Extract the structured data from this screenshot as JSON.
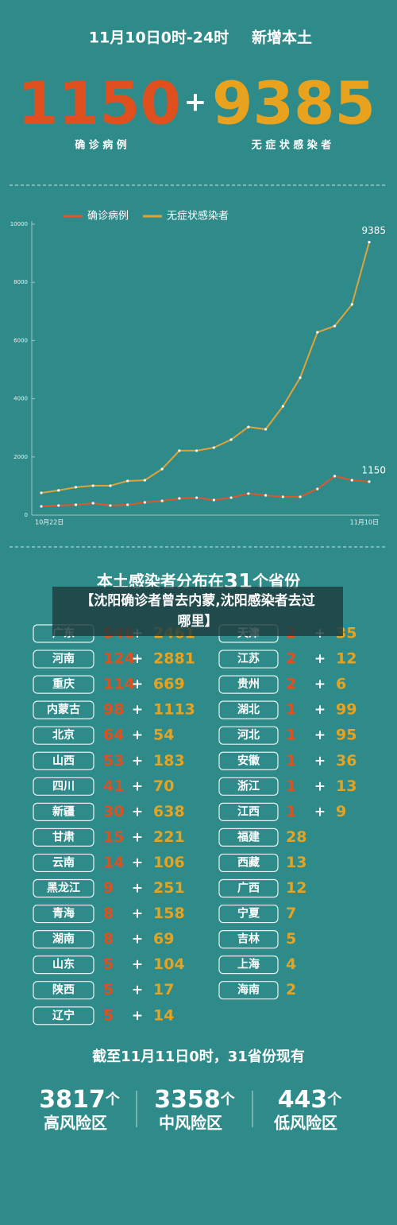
{
  "header": {
    "date": "11月10日0时-24时",
    "label": "新增本土",
    "confirmed": 1150,
    "plus": "+",
    "asymptomatic": 9385,
    "confirmed_label": "确 诊 病 例",
    "asymptomatic_label": "无 症 状 感 染 者"
  },
  "chart_data": {
    "type": "line",
    "categories": [
      "10月22日",
      null,
      null,
      null,
      null,
      null,
      null,
      null,
      null,
      null,
      null,
      null,
      null,
      null,
      null,
      null,
      null,
      null,
      null,
      "11月10日"
    ],
    "series": [
      {
        "name": "确诊病例",
        "color": "#e0562a",
        "values": [
          300,
          330,
          355,
          410,
          330,
          355,
          437,
          490,
          575,
          600,
          520,
          600,
          740,
          680,
          630,
          630,
          900,
          1340,
          1200,
          1150
        ]
      },
      {
        "name": "无症状感染者",
        "color": "#e2a23a",
        "values": [
          765,
          850,
          960,
          1010,
          1010,
          1175,
          1200,
          1585,
          2215,
          2215,
          2320,
          2595,
          3030,
          2950,
          3740,
          4725,
          6285,
          6500,
          7240,
          9385
        ]
      }
    ],
    "ylim": [
      0,
      10000
    ],
    "yticks": [
      0,
      2000,
      4000,
      6000,
      8000,
      10000
    ],
    "grid": false,
    "legend": "top"
  },
  "distribution": {
    "title_pre": "本土感染者分布在",
    "title_num": 31,
    "title_post": "个省份",
    "banner": "【沈阳确诊者曾去内蒙,沈阳感染者去过哪里】",
    "plus": "+",
    "left": [
      {
        "province": "广东",
        "confirmed": 546,
        "asymptomatic": 2461
      },
      {
        "province": "河南",
        "confirmed": 124,
        "asymptomatic": 2881
      },
      {
        "province": "重庆",
        "confirmed": 114,
        "asymptomatic": 669
      },
      {
        "province": "内蒙古",
        "confirmed": 98,
        "asymptomatic": 1113
      },
      {
        "province": "北京",
        "confirmed": 64,
        "asymptomatic": 54
      },
      {
        "province": "山西",
        "confirmed": 53,
        "asymptomatic": 183
      },
      {
        "province": "四川",
        "confirmed": 41,
        "asymptomatic": 70
      },
      {
        "province": "新疆",
        "confirmed": 30,
        "asymptomatic": 638
      },
      {
        "province": "甘肃",
        "confirmed": 15,
        "asymptomatic": 221
      },
      {
        "province": "云南",
        "confirmed": 14,
        "asymptomatic": 106
      },
      {
        "province": "黑龙江",
        "confirmed": 9,
        "asymptomatic": 251
      },
      {
        "province": "青海",
        "confirmed": 8,
        "asymptomatic": 158
      },
      {
        "province": "湖南",
        "confirmed": 8,
        "asymptomatic": 69
      },
      {
        "province": "山东",
        "confirmed": 5,
        "asymptomatic": 104
      },
      {
        "province": "陕西",
        "confirmed": 5,
        "asymptomatic": 17
      },
      {
        "province": "辽宁",
        "confirmed": 5,
        "asymptomatic": 14
      }
    ],
    "right": [
      {
        "province": "天津",
        "confirmed": 2,
        "asymptomatic": 35
      },
      {
        "province": "江苏",
        "confirmed": 2,
        "asymptomatic": 12
      },
      {
        "province": "贵州",
        "confirmed": 2,
        "asymptomatic": 6
      },
      {
        "province": "湖北",
        "confirmed": 1,
        "asymptomatic": 99
      },
      {
        "province": "河北",
        "confirmed": 1,
        "asymptomatic": 95
      },
      {
        "province": "安徽",
        "confirmed": 1,
        "asymptomatic": 36
      },
      {
        "province": "浙江",
        "confirmed": 1,
        "asymptomatic": 13
      },
      {
        "province": "江西",
        "confirmed": 1,
        "asymptomatic": 9
      },
      {
        "province": "福建",
        "asymptomatic": 28
      },
      {
        "province": "西藏",
        "asymptomatic": 13
      },
      {
        "province": "广西",
        "asymptomatic": 12
      },
      {
        "province": "宁夏",
        "asymptomatic": 7
      },
      {
        "province": "吉林",
        "asymptomatic": 5
      },
      {
        "province": "上海",
        "asymptomatic": 4
      },
      {
        "province": "海南",
        "asymptomatic": 2
      }
    ]
  },
  "risk": {
    "title": "截至11月11日0时，31省份现有",
    "unit": "个",
    "areas": [
      {
        "count": 3817,
        "label": "高风险区"
      },
      {
        "count": 3358,
        "label": "中风险区"
      },
      {
        "count": 443,
        "label": "低风险区"
      }
    ]
  }
}
